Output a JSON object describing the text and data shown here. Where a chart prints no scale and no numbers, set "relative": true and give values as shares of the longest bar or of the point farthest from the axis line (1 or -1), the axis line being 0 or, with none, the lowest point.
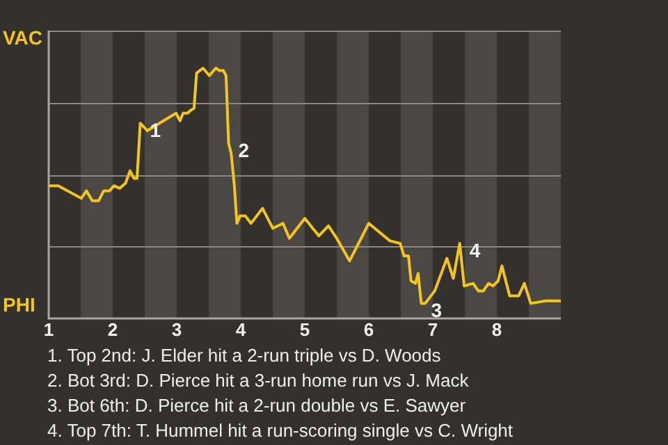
{
  "chart_data": {
    "type": "line",
    "relative": true,
    "x": [
      1,
      1.15,
      1.51,
      1.59,
      1.68,
      1.78,
      1.86,
      1.95,
      2.02,
      2.11,
      2.2,
      2.27,
      2.33,
      2.38,
      2.43,
      2.54,
      2.73,
      2.99,
      3.05,
      3.1,
      3.17,
      3.21,
      3.27,
      3.31,
      3.41,
      3.51,
      3.61,
      3.67,
      3.73,
      3.77,
      3.81,
      3.85,
      3.9,
      3.94,
      3.99,
      4.07,
      4.16,
      4.34,
      4.5,
      4.66,
      4.76,
      5,
      5.22,
      5.37,
      5.5,
      5.7,
      6,
      6.33,
      6.49,
      6.55,
      6.62,
      6.66,
      6.73,
      6.77,
      6.82,
      6.88,
      7.03,
      7.22,
      7.32,
      7.42,
      7.49,
      7.63,
      7.71,
      7.79,
      7.87,
      7.94,
      8.02,
      8.08,
      8.2,
      8.34,
      8.43,
      8.53,
      8.76,
      9
    ],
    "series": [
      {
        "color": "#f5c518",
        "values": [
          0.53,
          0.53,
          0.48,
          0.51,
          0.47,
          0.47,
          0.51,
          0.51,
          0.53,
          0.52,
          0.54,
          0.59,
          0.56,
          0.56,
          0.78,
          0.75,
          0.78,
          0.82,
          0.79,
          0.82,
          0.82,
          0.83,
          0.84,
          0.98,
          1,
          0.97,
          1,
          0.99,
          0.99,
          0.97,
          0.7,
          0.66,
          0.53,
          0.38,
          0.41,
          0.41,
          0.38,
          0.44,
          0.36,
          0.38,
          0.32,
          0.4,
          0.33,
          0.37,
          0.32,
          0.23,
          0.38,
          0.31,
          0.3,
          0.25,
          0.25,
          0.15,
          0.14,
          0.18,
          0.06,
          0.06,
          0.11,
          0.24,
          0.16,
          0.3,
          0.13,
          0.14,
          0.11,
          0.11,
          0.14,
          0.13,
          0.15,
          0.21,
          0.09,
          0.09,
          0.14,
          0.06,
          0.07,
          0.07
        ]
      }
    ],
    "xlim": [
      1,
      9
    ],
    "xticks": [
      1,
      2,
      3,
      4,
      5,
      6,
      7,
      8
    ],
    "grid": "y",
    "legend": false,
    "marker": "none",
    "line_style": "solid",
    "bands": [
      {
        "axis": "x",
        "from": 1.5,
        "to": 2,
        "color": "#4a4845"
      },
      {
        "axis": "x",
        "from": 2.5,
        "to": 3,
        "color": "#4a4845"
      },
      {
        "axis": "x",
        "from": 3.5,
        "to": 4,
        "color": "#4a4845"
      },
      {
        "axis": "x",
        "from": 4.5,
        "to": 5,
        "color": "#4a4845"
      },
      {
        "axis": "x",
        "from": 5.5,
        "to": 6,
        "color": "#4a4845"
      },
      {
        "axis": "x",
        "from": 6.5,
        "to": 7,
        "color": "#4a4845"
      },
      {
        "axis": "x",
        "from": 7.5,
        "to": 8,
        "color": "#4a4845"
      },
      {
        "axis": "x",
        "from": 8.5,
        "to": 9,
        "color": "#4a4845"
      }
    ],
    "annotations": [
      "VAC",
      "PHI",
      {
        "text": "1",
        "x": 2.43,
        "y": 0.78
      },
      {
        "text": "2",
        "x": 3.81,
        "y": 0.7
      },
      {
        "text": "3",
        "x": 6.82,
        "y": 0.06
      },
      {
        "text": "4",
        "x": 7.42,
        "y": 0.3
      },
      "1. Top 2nd: J. Elder hit a 2-run triple vs D. Woods",
      "2. Bot 3rd: D. Pierce hit a 3-run home run vs J. Mack",
      "3. Bot 6th: D. Pierce hit a 2-run double vs E. Sawyer",
      "4. Top 7th: T. Hummel hit a run-scoring single vs C. Wright"
    ]
  }
}
